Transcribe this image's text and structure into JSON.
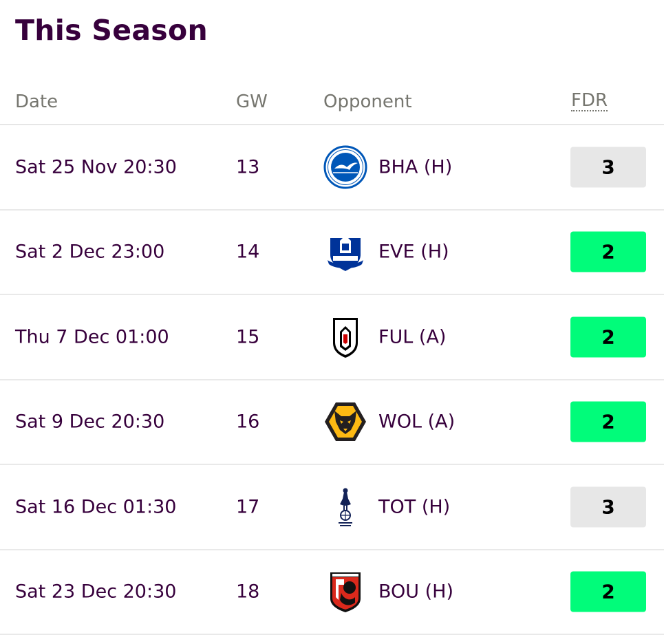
{
  "title": "This Season",
  "columns": {
    "date": "Date",
    "gw": "GW",
    "opponent": "Opponent",
    "fdr": "FDR"
  },
  "fdr_colors": {
    "2": "#01fc7a",
    "3": "#e7e7e7"
  },
  "fixtures": [
    {
      "date": "Sat 25 Nov 20:30",
      "gw": "13",
      "opponent": "BHA (H)",
      "badge": "brighton-crest-icon",
      "fdr": "3"
    },
    {
      "date": "Sat 2 Dec 23:00",
      "gw": "14",
      "opponent": "EVE (H)",
      "badge": "everton-crest-icon",
      "fdr": "2"
    },
    {
      "date": "Thu 7 Dec 01:00",
      "gw": "15",
      "opponent": "FUL (A)",
      "badge": "fulham-crest-icon",
      "fdr": "2"
    },
    {
      "date": "Sat 9 Dec 20:30",
      "gw": "16",
      "opponent": "WOL (A)",
      "badge": "wolves-crest-icon",
      "fdr": "2"
    },
    {
      "date": "Sat 16 Dec 01:30",
      "gw": "17",
      "opponent": "TOT (H)",
      "badge": "tottenham-crest-icon",
      "fdr": "3"
    },
    {
      "date": "Sat 23 Dec 20:30",
      "gw": "18",
      "opponent": "BOU (H)",
      "badge": "bournemouth-crest-icon",
      "fdr": "2"
    }
  ]
}
